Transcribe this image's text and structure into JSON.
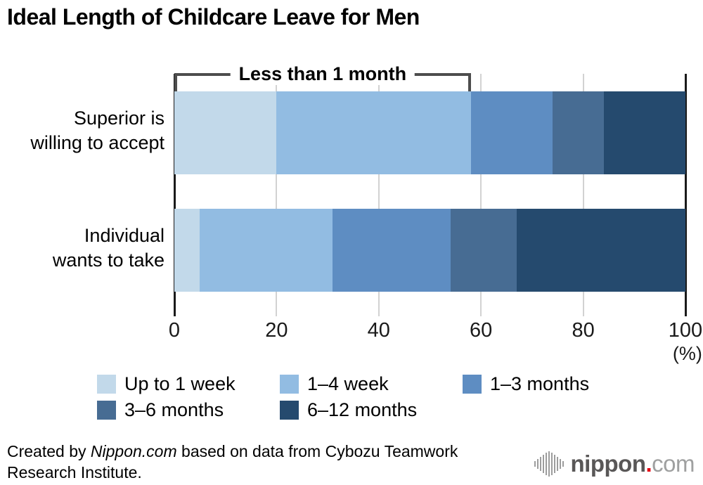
{
  "title": "Ideal Length of Childcare Leave for Men",
  "chart_data": {
    "type": "bar",
    "stacked": true,
    "orientation": "horizontal",
    "categories": [
      "Superior is willing to accept",
      "Individual wants to take"
    ],
    "category_lines": [
      [
        "Superior is",
        "willing to accept"
      ],
      [
        "Individual",
        "wants to take"
      ]
    ],
    "series": [
      {
        "name": "Up to 1 week",
        "color": "#c2d9ea",
        "values": [
          20,
          5
        ]
      },
      {
        "name": "1–4 week",
        "color": "#92bce2",
        "values": [
          38,
          26
        ]
      },
      {
        "name": "1–3 months",
        "color": "#5e8dc2",
        "values": [
          16,
          23
        ]
      },
      {
        "name": "3–6 months",
        "color": "#476c93",
        "values": [
          10,
          13
        ]
      },
      {
        "name": "6–12 months",
        "color": "#254a6e",
        "values": [
          16,
          33
        ]
      }
    ],
    "xlim": [
      0,
      100
    ],
    "x_ticks": [
      0,
      20,
      40,
      60,
      80,
      100
    ],
    "x_unit": "(%)",
    "annotation": {
      "label": "Less than 1 month",
      "span_series": 2,
      "row": 0
    },
    "grid": true,
    "legend_position": "bottom"
  },
  "footer": {
    "credit_prefix": "Created by ",
    "credit_source": "Nippon.com",
    "credit_suffix": " based on data from Cybozu Teamwork Research Institute.",
    "logo": {
      "name_bold": "nippon",
      "dot": ".",
      "name_light": "com",
      "bold_color": "#595757",
      "dot_color": "#e60012",
      "light_color": "#9fa0a0",
      "icon": "soundwave-bars-icon",
      "icon_bar_heights": [
        8,
        14,
        20,
        26,
        32,
        36,
        32,
        26,
        20,
        14,
        8
      ]
    }
  }
}
